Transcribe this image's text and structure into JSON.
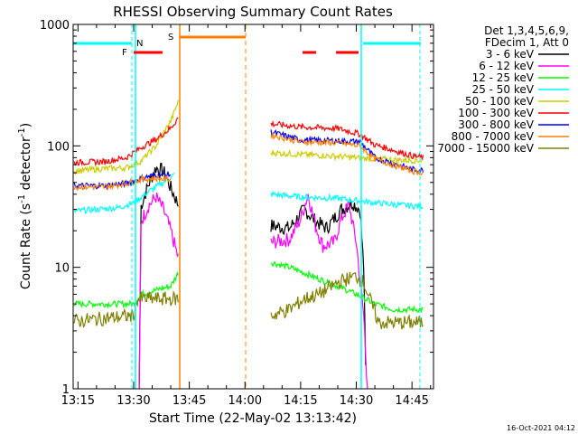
{
  "chart_data": {
    "type": "line",
    "title": "RHESSI Observing Summary Count Rates",
    "xlabel": "Start Time (22-May-02 13:13:42)",
    "ylabel_main": "Count Rate (s",
    "ylabel_sup1": "-1",
    "ylabel_mid": " detector",
    "ylabel_sup2": "-1",
    "ylabel_end": ")",
    "footer": "16-Oct-2021 04:12",
    "yscale": "log",
    "ylim": [
      1,
      1000
    ],
    "xlim_min": [
      13.7,
      110.8
    ],
    "x_ticks": [
      {
        "min": 15,
        "label": "13:15"
      },
      {
        "min": 30,
        "label": "13:30"
      },
      {
        "min": 45,
        "label": "13:45"
      },
      {
        "min": 60,
        "label": "14:00"
      },
      {
        "min": 75,
        "label": "14:15"
      },
      {
        "min": 90,
        "label": "14:30"
      },
      {
        "min": 105,
        "label": "14:45"
      }
    ],
    "y_ticks": [
      {
        "value": 1,
        "label": "1"
      },
      {
        "value": 10,
        "label": "10"
      },
      {
        "value": 100,
        "label": "100"
      },
      {
        "value": 1000,
        "label": "1000"
      }
    ],
    "legend": {
      "header1": "Det 1,3,4,5,6,9,",
      "header2": "FDecim 1, Att 0"
    },
    "series": [
      {
        "name": "3 - 6 keV",
        "color": "#000000",
        "seg1": [
          [
            31.5,
            1.0
          ],
          [
            32,
            32
          ],
          [
            34,
            48
          ],
          [
            36,
            66
          ],
          [
            38,
            62
          ],
          [
            40,
            45
          ],
          [
            42,
            33
          ]
        ],
        "seg2": [
          [
            67,
            22
          ],
          [
            72,
            21
          ],
          [
            76,
            30
          ],
          [
            79,
            24
          ],
          [
            82,
            21
          ],
          [
            86,
            30
          ],
          [
            89,
            34
          ],
          [
            91,
            30
          ],
          [
            92,
            10
          ],
          [
            92.6,
            1.0
          ]
        ]
      },
      {
        "name": "6 - 12 keV",
        "color": "#ff00ff",
        "seg1": [
          [
            31.5,
            1.0
          ],
          [
            32,
            24
          ],
          [
            34,
            32
          ],
          [
            36,
            38
          ],
          [
            38,
            30
          ],
          [
            40,
            20
          ],
          [
            42,
            12
          ]
        ],
        "seg2": [
          [
            67,
            16
          ],
          [
            72,
            17
          ],
          [
            75,
            25
          ],
          [
            77,
            40
          ],
          [
            79,
            22
          ],
          [
            81,
            15
          ],
          [
            84,
            16
          ],
          [
            86,
            25
          ],
          [
            88,
            33
          ],
          [
            90,
            16
          ],
          [
            92,
            4
          ],
          [
            93,
            1.0
          ]
        ]
      },
      {
        "name": "12 - 25 keV",
        "color": "#00ff00",
        "seg1": [
          [
            14,
            5
          ],
          [
            30,
            5
          ],
          [
            32,
            6
          ],
          [
            36,
            6.5
          ],
          [
            40,
            7
          ],
          [
            42,
            9
          ]
        ],
        "seg2": [
          [
            67,
            11
          ],
          [
            72,
            10
          ],
          [
            76,
            9
          ],
          [
            80,
            8
          ],
          [
            85,
            7
          ],
          [
            90,
            6
          ],
          [
            95,
            5
          ],
          [
            100,
            4.5
          ],
          [
            108,
            4.5
          ]
        ]
      },
      {
        "name": "25 - 50 keV",
        "color": "#00ffff",
        "seg1": [
          [
            14,
            29
          ],
          [
            20,
            30
          ],
          [
            26,
            31
          ],
          [
            30,
            34
          ],
          [
            34,
            42
          ],
          [
            38,
            50
          ],
          [
            41,
            58
          ]
        ],
        "seg2": [
          [
            67,
            40
          ],
          [
            75,
            38
          ],
          [
            85,
            37
          ],
          [
            95,
            34
          ],
          [
            105,
            32
          ],
          [
            108,
            32
          ]
        ]
      },
      {
        "name": "50 - 100 keV",
        "color": "#cccc00",
        "seg1": [
          [
            14,
            62
          ],
          [
            22,
            65
          ],
          [
            28,
            66
          ],
          [
            32,
            75
          ],
          [
            36,
            100
          ],
          [
            40,
            160
          ],
          [
            42,
            230
          ]
        ],
        "seg2": [
          [
            67,
            88
          ],
          [
            75,
            85
          ],
          [
            85,
            82
          ],
          [
            95,
            78
          ],
          [
            105,
            76
          ],
          [
            108,
            76
          ]
        ]
      },
      {
        "name": "100 - 300 keV",
        "color": "#ff0000",
        "seg1": [
          [
            14,
            73
          ],
          [
            22,
            74
          ],
          [
            28,
            80
          ],
          [
            32,
            97
          ],
          [
            36,
            113
          ],
          [
            40,
            140
          ],
          [
            42,
            170
          ]
        ],
        "seg2": [
          [
            67,
            152
          ],
          [
            75,
            143
          ],
          [
            85,
            139
          ],
          [
            91,
            125
          ],
          [
            95,
            102
          ],
          [
            105,
            83
          ],
          [
            108,
            80
          ]
        ]
      },
      {
        "name": "300 - 800 keV",
        "color": "#0000ff",
        "seg1": [
          [
            14,
            47
          ],
          [
            22,
            47
          ],
          [
            28,
            49
          ],
          [
            32,
            54
          ],
          [
            36,
            58
          ],
          [
            40,
            58
          ]
        ],
        "seg2": [
          [
            67,
            130
          ],
          [
            75,
            112
          ],
          [
            85,
            110
          ],
          [
            91,
            108
          ],
          [
            95,
            80
          ],
          [
            105,
            64
          ],
          [
            108,
            63
          ]
        ]
      },
      {
        "name": "800 - 7000 keV",
        "color": "#ff8000",
        "seg1": [
          [
            14,
            46
          ],
          [
            22,
            46
          ],
          [
            28,
            49
          ],
          [
            32,
            53
          ],
          [
            36,
            54
          ],
          [
            40,
            53
          ]
        ],
        "seg2": [
          [
            67,
            123
          ],
          [
            75,
            108
          ],
          [
            85,
            106
          ],
          [
            91,
            100
          ],
          [
            95,
            78
          ],
          [
            105,
            62
          ],
          [
            108,
            60
          ]
        ]
      },
      {
        "name": "7000 - 15000 keV",
        "color": "#808000",
        "seg1": [
          [
            14,
            3.6
          ],
          [
            30,
            4
          ],
          [
            31,
            5.5
          ],
          [
            36,
            5.5
          ],
          [
            42,
            5.5
          ]
        ],
        "seg2": [
          [
            67,
            4
          ],
          [
            72,
            4.5
          ],
          [
            76,
            5.5
          ],
          [
            80,
            6
          ],
          [
            85,
            7.5
          ],
          [
            90,
            8.5
          ],
          [
            92,
            7.5
          ],
          [
            96,
            3.5
          ],
          [
            108,
            3.5
          ]
        ]
      }
    ],
    "flags": [
      {
        "label": "N",
        "color": "#00ffff",
        "x": 31.3
      },
      {
        "label": "S",
        "color": "#ff8000",
        "x": 43.0
      },
      {
        "label": "F",
        "color": "#ff0000",
        "x": 30.5
      }
    ]
  }
}
